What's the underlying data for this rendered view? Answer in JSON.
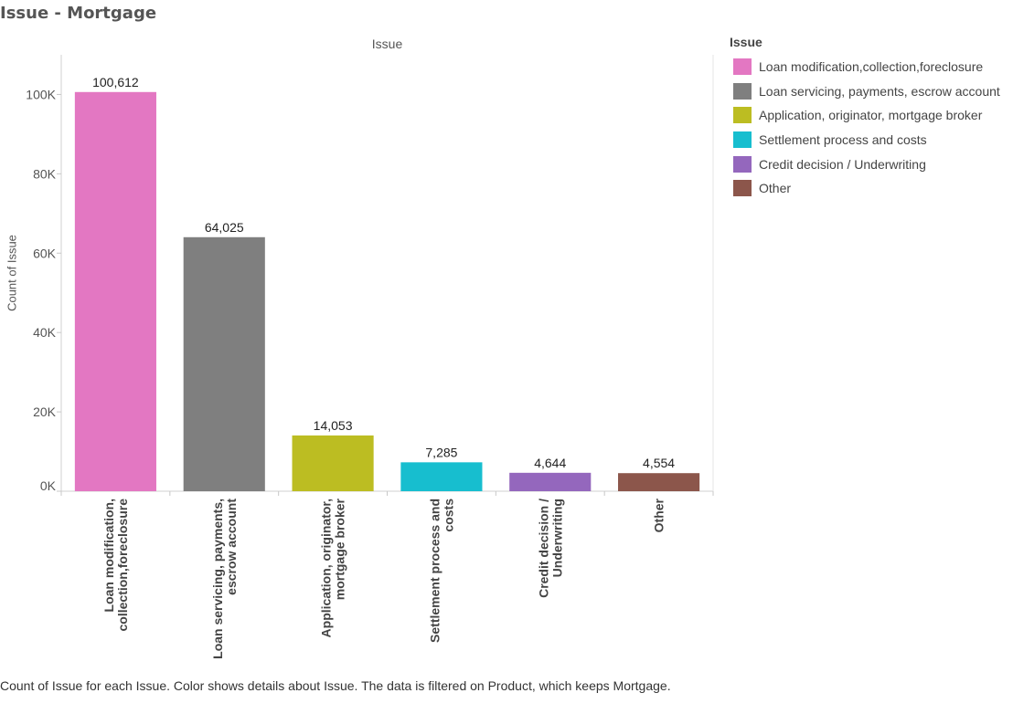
{
  "page": {
    "title": "Issue - Mortgage",
    "header_label": "Issue",
    "caption": "Count of Issue for each Issue.  Color shows details about Issue. The data is filtered on Product, which keeps Mortgage."
  },
  "legend": {
    "title": "Issue",
    "items": [
      {
        "label": "Loan modification,collection,foreclosure",
        "color": "#E377C2"
      },
      {
        "label": "Loan servicing, payments, escrow account",
        "color": "#7F7F7F"
      },
      {
        "label": "Application, originator, mortgage broker",
        "color": "#BCBD22"
      },
      {
        "label": "Settlement process and costs",
        "color": "#17BECF"
      },
      {
        "label": "Credit decision / Underwriting",
        "color": "#9467BD"
      },
      {
        "label": "Other",
        "color": "#8C564B"
      }
    ]
  },
  "chart_data": {
    "type": "bar",
    "title": "Issue - Mortgage",
    "xlabel": "",
    "ylabel": "Count of Issue",
    "ylim": [
      0,
      110000
    ],
    "yticks": [
      0,
      20000,
      40000,
      60000,
      80000,
      100000
    ],
    "ytick_labels": [
      "0K",
      "20K",
      "40K",
      "60K",
      "80K",
      "100K"
    ],
    "categories": [
      [
        "Loan modification,",
        "collection,foreclosure"
      ],
      [
        "Loan servicing, payments,",
        "escrow account"
      ],
      [
        "Application, originator,",
        "mortgage broker"
      ],
      [
        "Settlement process and",
        "costs"
      ],
      [
        "Credit decision /",
        "Underwriting"
      ],
      [
        "Other"
      ]
    ],
    "values": [
      100612,
      64025,
      14053,
      7285,
      4644,
      4554
    ],
    "value_labels": [
      "100,612",
      "64,025",
      "14,053",
      "7,285",
      "4,644",
      "4,554"
    ],
    "colors": [
      "#E377C2",
      "#7F7F7F",
      "#BCBD22",
      "#17BECF",
      "#9467BD",
      "#8C564B"
    ],
    "grid": false,
    "legend_position": "right"
  }
}
